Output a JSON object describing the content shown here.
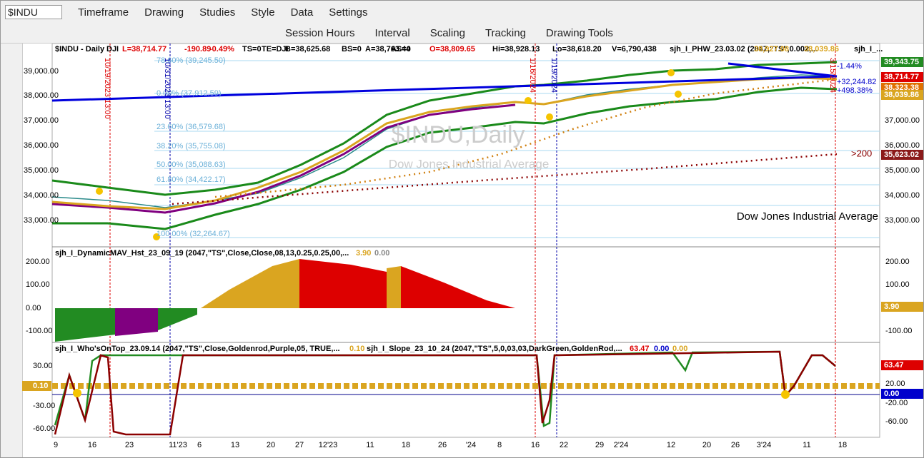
{
  "toolbar_top": {
    "symbol": "$INDU",
    "items": [
      "Timeframe",
      "Drawing",
      "Studies",
      "Style",
      "Data",
      "Settings"
    ]
  },
  "toolbar_second": {
    "items": [
      "Session Hours",
      "Interval",
      "Scaling",
      "Tracking",
      "Drawing Tools"
    ]
  },
  "price_pane": {
    "header": [
      "$INDU - Daily",
      "DJI",
      "L=38,714.77",
      "-190.89",
      "-0.49%",
      "TS=0",
      "TE=DJI",
      "B=38,625.68",
      "BS=0",
      "A=38,763.44",
      "AS=0",
      "O=38,809.65",
      "Hi=38,928.13",
      "Lo=38,618.20",
      "V=6,790,438",
      "sjh_I_PHW_23.03.02 (2047,\"TS\",0.002,...",
      "38,927.08",
      "38,039.86",
      "sjh_I_..."
    ],
    "left_axis": [
      "39,000.00",
      "38,000.00",
      "37,000.00",
      "36,000.00",
      "35,000.00",
      "34,000.00",
      "33,000.00"
    ],
    "right_axis": [
      "37,000.00",
      "36,000.00",
      "35,000.00",
      "34,000.00",
      "33,000.00"
    ],
    "right_flags": [
      "39,343.75",
      "38,714.77",
      "38,323.38",
      "38,039.86",
      "35,623.02"
    ],
    "fib_levels": [
      "78.60% (39,245.50)",
      "0.00% (37,912.59)",
      "23.60% (36,579.68)",
      "38.20% (35,755.08)",
      "50.00% (35,088.63)",
      "61.80% (34,422.17)",
      "100.00% (32,264.67)"
    ],
    "watermark": [
      "$INDU,Daily",
      "Dow Jones Industrial Average"
    ],
    "description": "Dow Jones Industrial Average",
    "ma_label": ">200",
    "trend_labels": [
      "-1.44%",
      "+32,244.82",
      "+498.38%"
    ],
    "session_markers": [
      "10/19/2023 13:00",
      "10/31/2023 13:00",
      "1/16/2024",
      "1/19/2024",
      "3/15/2024"
    ]
  },
  "histogram_pane": {
    "header": [
      "sjh_I_DynamicMAV_Hst_23_09_19 (2047,\"TS\",Close,Close,08,13,0.25,0.25,00,...",
      "3.90",
      "0.00"
    ],
    "axis": [
      "200.00",
      "100.00",
      "0.00",
      "-100.00"
    ],
    "flag": "3.90"
  },
  "oscillator_pane": {
    "header": [
      "sjh_I_Who'sOnTop_23.09.14 (2047,\"TS\",Close,Goldenrod,Purple,05, TRUE,...",
      "0.10",
      "sjh_I_Slope_23_10_24 (2047,\"TS\",5,0,03,03,DarkGreen,GoldenRod,...",
      "63.47",
      "0.00",
      "0.00"
    ],
    "left_axis": [
      "30.00",
      "-30.00",
      "-60.00"
    ],
    "right_axis": [
      "20.00",
      "-20.00",
      "-60.00"
    ],
    "left_flag": "0.10",
    "right_flags": [
      "63.47",
      "0.00"
    ]
  },
  "time_axis": [
    "9",
    "16",
    "23",
    "11'23",
    "6",
    "13",
    "20",
    "27",
    "12'23",
    "11",
    "18",
    "26",
    "'24",
    "8",
    "16",
    "22",
    "29",
    "2'24",
    "12",
    "20",
    "26",
    "3'24",
    "11",
    "18"
  ]
}
